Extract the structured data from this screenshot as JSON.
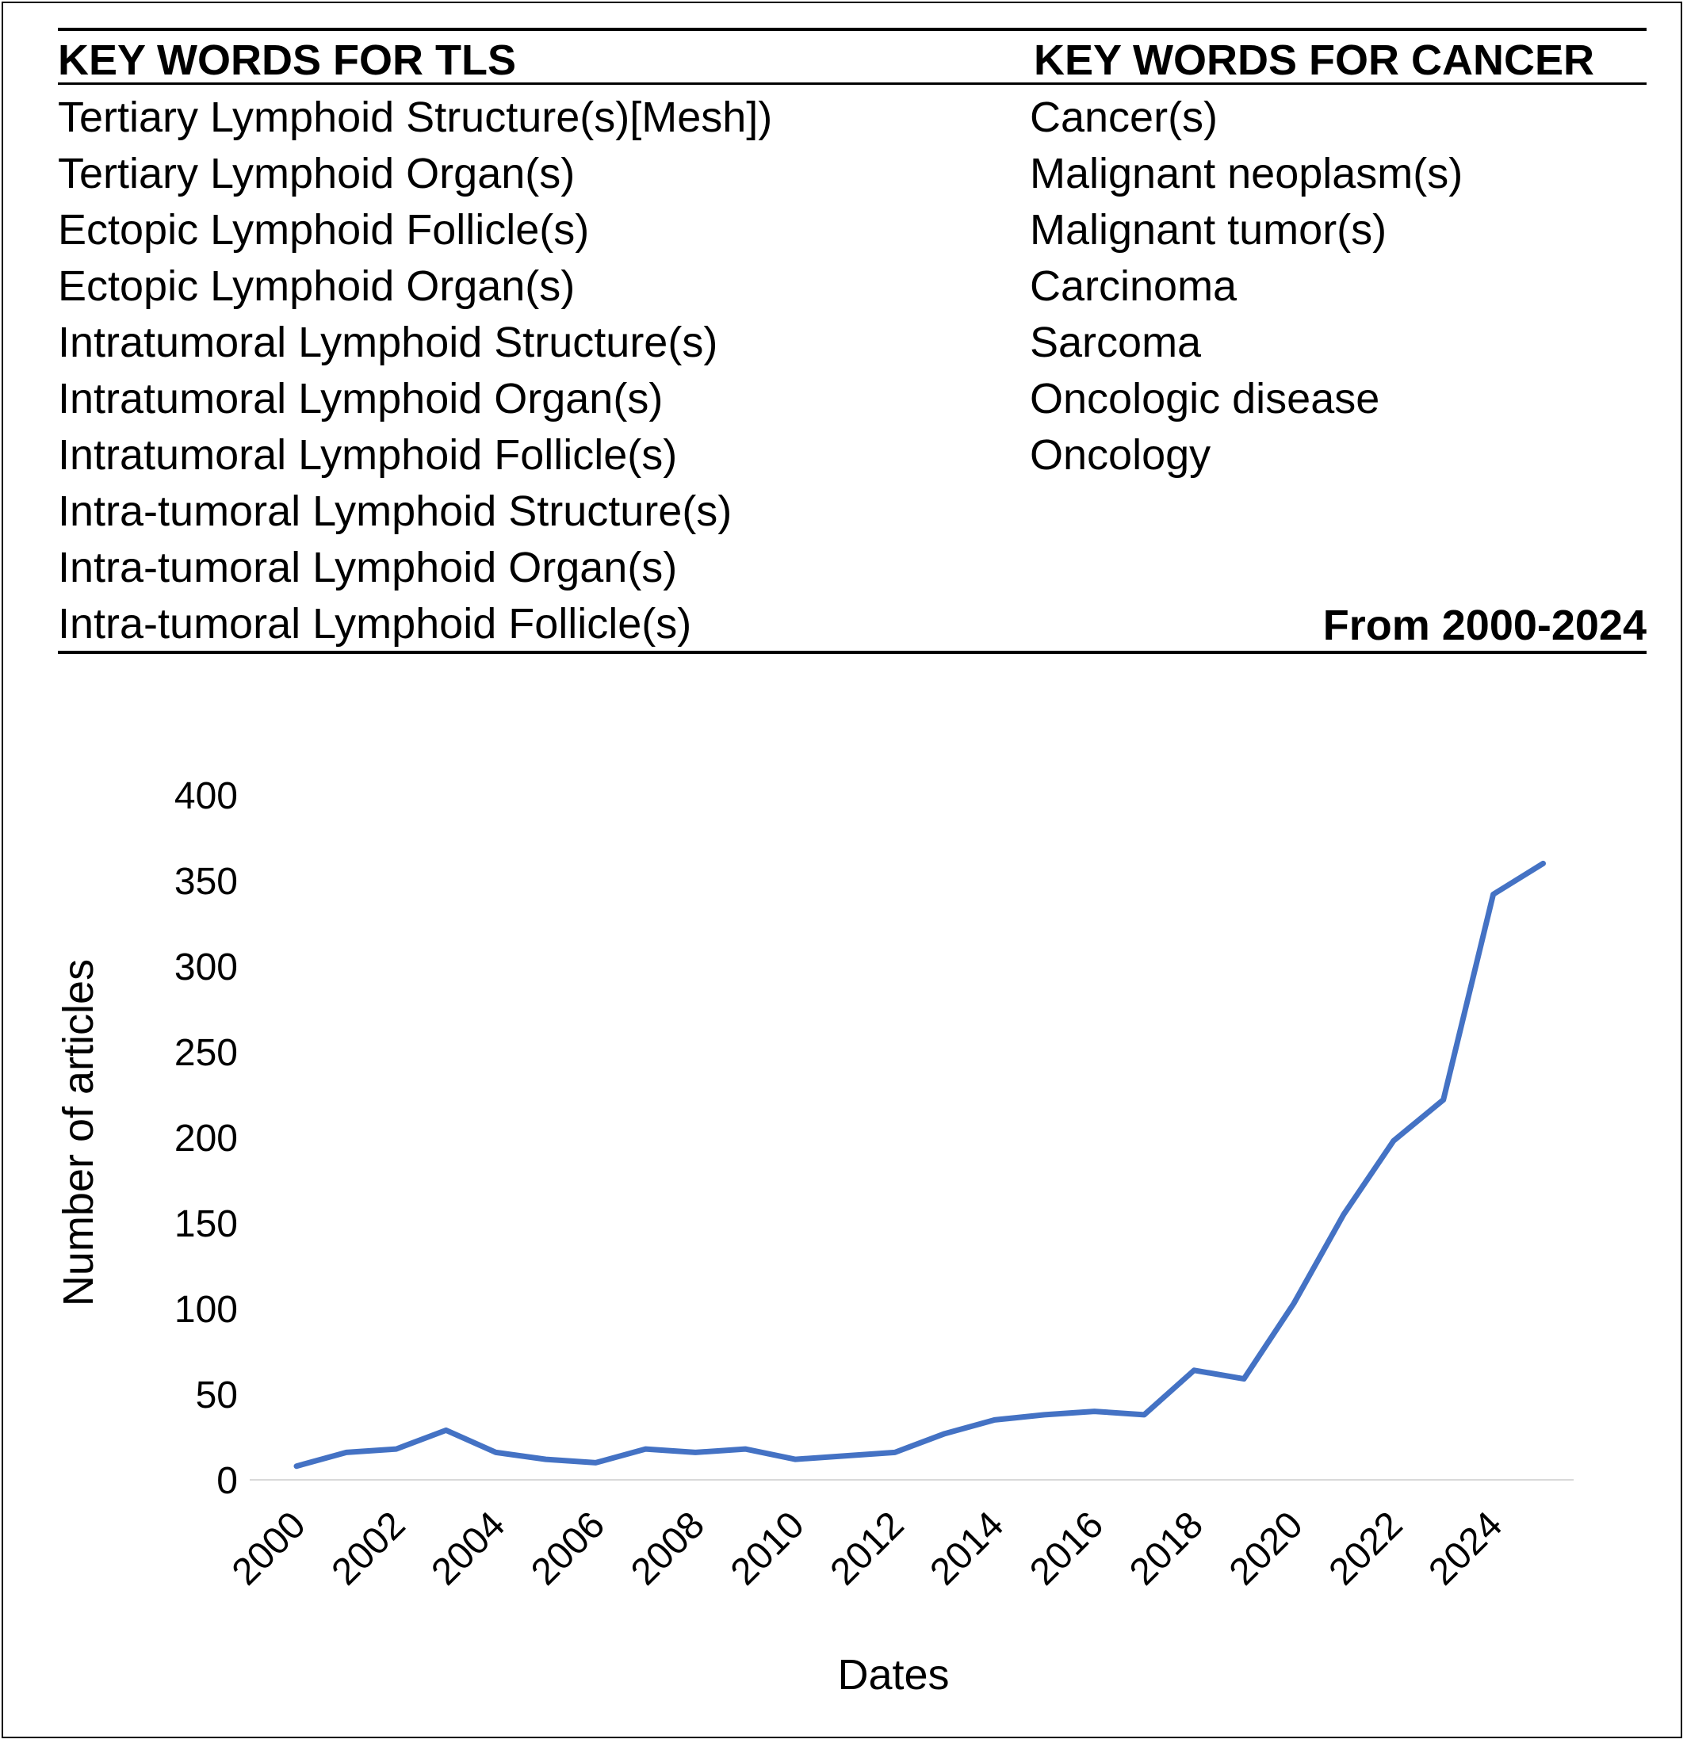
{
  "table": {
    "header_left": "KEY WORDS FOR TLS",
    "header_right": "KEY WORDS FOR CANCER",
    "tls_keywords": [
      "Tertiary Lymphoid Structure(s)[Mesh])",
      "Tertiary Lymphoid Organ(s)",
      "Ectopic Lymphoid Follicle(s)",
      "Ectopic Lymphoid Organ(s)",
      "Intratumoral Lymphoid Structure(s)",
      "Intratumoral Lymphoid Organ(s)",
      "Intratumoral Lymphoid Follicle(s)",
      "Intra-tumoral Lymphoid Structure(s)",
      "Intra-tumoral Lymphoid Organ(s)",
      "Intra-tumoral Lymphoid Follicle(s)"
    ],
    "cancer_keywords": [
      "Cancer(s)",
      "Malignant neoplasm(s)",
      "Malignant tumor(s)",
      "Carcinoma",
      "Sarcoma",
      "Oncologic disease",
      "Oncology"
    ],
    "date_range": "From 2000-2024"
  },
  "chart_data": {
    "type": "line",
    "title": "",
    "xlabel": "Dates",
    "ylabel": "Number of articles",
    "x": [
      2000,
      2001,
      2002,
      2003,
      2004,
      2005,
      2006,
      2007,
      2008,
      2009,
      2010,
      2011,
      2012,
      2013,
      2014,
      2015,
      2016,
      2017,
      2018,
      2019,
      2020,
      2021,
      2022,
      2023,
      2024,
      2025
    ],
    "series": [
      {
        "name": "",
        "values": [
          8,
          16,
          18,
          29,
          16,
          12,
          10,
          18,
          16,
          18,
          12,
          14,
          16,
          27,
          35,
          38,
          40,
          38,
          64,
          59,
          103,
          155,
          198,
          222,
          342,
          360
        ],
        "color": "#4472C4"
      }
    ],
    "x_tick_labels": [
      "2000",
      "2002",
      "2004",
      "2006",
      "2008",
      "2010",
      "2012",
      "2014",
      "2016",
      "2018",
      "2020",
      "2022",
      "2024"
    ],
    "y_tick_labels": [
      "0",
      "50",
      "100",
      "150",
      "200",
      "250",
      "300",
      "350",
      "400"
    ],
    "ylim": [
      0,
      400
    ],
    "grid": false,
    "legend": "none"
  }
}
